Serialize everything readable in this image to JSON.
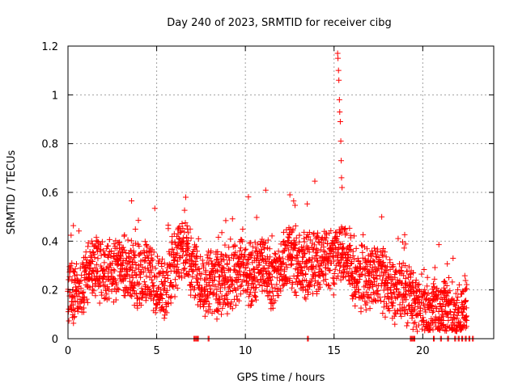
{
  "chart_data": {
    "type": "scatter",
    "title": "Day 240 of 2023, SRMTID for receiver cibg",
    "xlabel": "GPS time / hours",
    "ylabel": "SRMTID / TECUs",
    "xlim": [
      0,
      24
    ],
    "ylim": [
      0,
      1.2
    ],
    "x_ticks": [
      0,
      5,
      10,
      15,
      20
    ],
    "y_ticks": [
      0,
      0.2,
      0.4,
      0.6,
      0.8,
      1,
      1.2
    ],
    "x_tick_labels": [
      "0",
      "5",
      "10",
      "15",
      "20"
    ],
    "y_tick_labels": [
      "0",
      "0.2",
      "0.4",
      "0.6",
      "0.8",
      "1",
      "1.2"
    ],
    "grid": true,
    "marker": "+",
    "color": "#ff0000",
    "series": [
      {
        "name": "SRMTID",
        "trend": {
          "x": [
            0,
            0.5,
            1.0,
            1.5,
            2.0,
            2.5,
            3.0,
            3.5,
            4.0,
            4.5,
            5.0,
            5.5,
            6.0,
            6.5,
            7.0,
            7.5,
            8.0,
            8.5,
            9.0,
            9.5,
            10.0,
            10.5,
            11.0,
            11.5,
            12.0,
            12.5,
            13.0,
            13.5,
            14.0,
            14.5,
            15.0,
            15.5,
            16.0,
            16.5,
            17.0,
            17.5,
            18.0,
            18.5,
            19.0,
            19.5,
            20.0,
            20.5,
            21.0,
            21.5,
            22.0,
            22.5
          ],
          "y": [
            0.2,
            0.18,
            0.25,
            0.3,
            0.27,
            0.28,
            0.3,
            0.26,
            0.25,
            0.28,
            0.22,
            0.2,
            0.3,
            0.38,
            0.3,
            0.22,
            0.24,
            0.21,
            0.25,
            0.27,
            0.28,
            0.26,
            0.3,
            0.24,
            0.27,
            0.35,
            0.3,
            0.3,
            0.3,
            0.35,
            0.32,
            0.38,
            0.28,
            0.24,
            0.25,
            0.26,
            0.22,
            0.2,
            0.18,
            0.15,
            0.12,
            0.11,
            0.12,
            0.1,
            0.09,
            0.1
          ]
        },
        "spike": {
          "x": [
            15.2,
            15.22,
            15.25,
            15.27,
            15.3,
            15.32,
            15.35,
            15.38,
            15.4,
            15.42,
            15.45
          ],
          "y": [
            1.17,
            1.15,
            1.1,
            1.06,
            0.98,
            0.93,
            0.89,
            0.81,
            0.73,
            0.66,
            0.62
          ]
        },
        "zero_points_x": [
          7.1,
          7.2,
          7.3,
          7.9,
          13.5,
          19.3,
          19.4,
          19.5,
          20.6,
          21.0,
          21.4,
          21.8,
          22.0,
          22.2,
          22.4,
          22.6,
          22.8
        ]
      }
    ]
  }
}
